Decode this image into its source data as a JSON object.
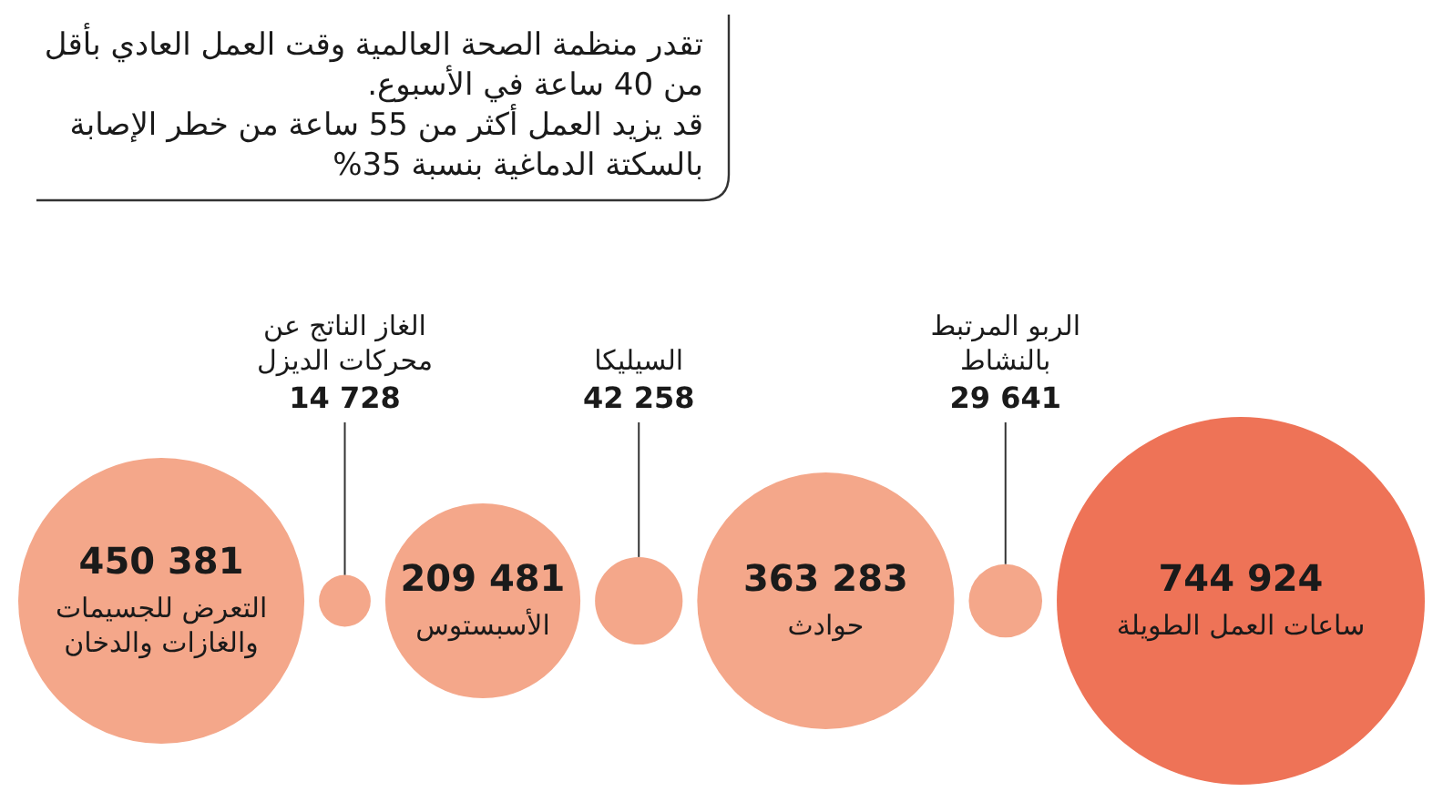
{
  "chart_data": {
    "type": "other",
    "annotations": [
      "تقدر منظمة الصحة العالمية وقت العمل العادي بأقل من 40 ساعة في الأسبوع.",
      "قد يزيد العمل أكثر من 55 ساعة من خطر الإصابة بالسكتة الدماغية بنسبة 35%"
    ],
    "categories": [
      "ساعات العمل الطويلة",
      "الربو المرتبط بالنشاط",
      "حوادث",
      "السيليكا",
      "الأسبستوس",
      "الغاز الناتج عن محركات الديزل",
      "التعرض للجسيمات والغازات والدخان"
    ],
    "values": [
      744924,
      29641,
      363283,
      42258,
      209481,
      14728,
      450381
    ],
    "value_labels": [
      "744 924",
      "29 641",
      "363 283",
      "42 258",
      "209 481",
      "14 728",
      "450 381"
    ],
    "colors": [
      "#ee7357",
      "#f4a78a",
      "#f4a78a",
      "#f4a78a",
      "#f4a78a",
      "#f4a78a",
      "#f4a78a"
    ]
  }
}
